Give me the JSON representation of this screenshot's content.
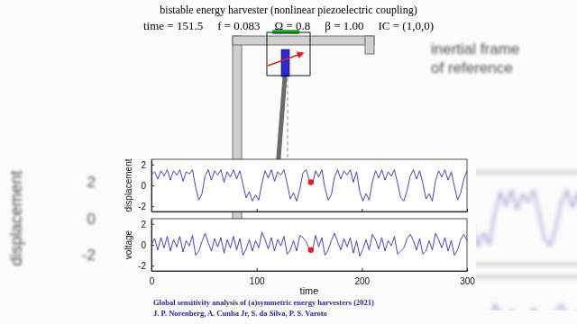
{
  "header": {
    "title": "bistable energy harvester (nonlinear piezoelectric coupling)",
    "params": [
      "time = 151.5",
      "f = 0.083",
      "Ω = 0.8",
      "β = 1.00",
      "IC = (1,0,0)"
    ]
  },
  "diagram": {
    "label": [
      "inertial frame",
      "of reference"
    ]
  },
  "chart_data": [
    {
      "type": "line",
      "y_label": "displacement",
      "x": [
        0,
        3,
        6,
        9,
        12,
        15,
        18,
        21,
        24,
        27,
        30,
        33,
        36,
        39,
        42,
        45,
        48,
        51,
        54,
        57,
        60,
        63,
        66,
        69,
        72,
        75,
        78,
        81,
        84,
        87,
        90,
        93,
        96,
        99,
        102,
        105,
        108,
        111,
        114,
        117,
        120,
        123,
        126,
        129,
        132,
        135,
        138,
        141,
        144,
        147,
        150,
        153,
        156,
        159,
        162,
        165,
        168,
        171,
        174,
        177,
        180,
        183,
        186,
        189,
        192,
        195,
        198,
        201,
        204,
        207,
        210,
        213,
        216,
        219,
        222,
        225,
        228,
        231,
        234,
        237,
        240,
        243,
        246,
        249,
        252,
        255,
        258,
        261,
        264,
        267,
        270,
        273,
        276,
        279,
        282,
        285,
        288,
        291,
        294,
        297,
        300
      ],
      "series": [
        {
          "color": "#3030a0",
          "values": [
            1.0,
            1.3,
            0.6,
            1.4,
            0.9,
            1.5,
            0.5,
            1.4,
            1.0,
            1.5,
            0.4,
            1.3,
            1.1,
            1.5,
            -0.2,
            -1.4,
            -0.8,
            0.9,
            1.5,
            0.5,
            1.4,
            1.0,
            1.5,
            0.3,
            1.3,
            0.8,
            1.5,
            0.6,
            1.4,
            0.1,
            -1.2,
            -0.6,
            -1.5,
            -0.9,
            -1.4,
            0.2,
            1.4,
            0.7,
            1.5,
            0.4,
            1.3,
            1.0,
            1.5,
            0.2,
            -1.3,
            -0.7,
            -1.5,
            -0.4,
            1.2,
            1.5,
            0.5,
            0.1,
            1.4,
            0.8,
            1.5,
            -0.3,
            -1.4,
            -0.9,
            0.8,
            1.5,
            0.6,
            1.4,
            1.0,
            1.5,
            0.3,
            1.3,
            -0.6,
            -1.5,
            -0.8,
            -1.4,
            0.3,
            1.4,
            0.7,
            1.5,
            0.5,
            1.3,
            0.9,
            1.5,
            0.2,
            -1.2,
            -1.5,
            -0.5,
            0.9,
            1.5,
            0.6,
            1.4,
            0.2,
            -1.3,
            -0.8,
            -1.5,
            0.4,
            1.4,
            0.8,
            1.5,
            0.5,
            1.3,
            -0.1,
            -1.4,
            -0.7,
            0.6,
            1.4
          ]
        },
        {
          "type": "scatter",
          "marker": "circle",
          "color": "#e0201c",
          "x": [
            151.5
          ],
          "values": [
            0.3
          ]
        }
      ],
      "xlim": [
        0,
        300
      ],
      "xticks": [
        0,
        100,
        200,
        300
      ],
      "ylim": [
        -2.5,
        2.5
      ],
      "yticks": [
        -2,
        0,
        2
      ],
      "tick_labels": "y"
    },
    {
      "type": "line",
      "x_label": "time",
      "y_label": "voltage",
      "x": [
        0,
        3,
        6,
        9,
        12,
        15,
        18,
        21,
        24,
        27,
        30,
        33,
        36,
        39,
        42,
        45,
        48,
        51,
        54,
        57,
        60,
        63,
        66,
        69,
        72,
        75,
        78,
        81,
        84,
        87,
        90,
        93,
        96,
        99,
        102,
        105,
        108,
        111,
        114,
        117,
        120,
        123,
        126,
        129,
        132,
        135,
        138,
        141,
        144,
        147,
        150,
        153,
        156,
        159,
        162,
        165,
        168,
        171,
        174,
        177,
        180,
        183,
        186,
        189,
        192,
        195,
        198,
        201,
        204,
        207,
        210,
        213,
        216,
        219,
        222,
        225,
        228,
        231,
        234,
        237,
        240,
        243,
        246,
        249,
        252,
        255,
        258,
        261,
        264,
        267,
        270,
        273,
        276,
        279,
        282,
        285,
        288,
        291,
        294,
        297,
        300
      ],
      "series": [
        {
          "color": "#3030a0",
          "values": [
            0.0,
            0.6,
            -0.5,
            0.7,
            -0.3,
            0.8,
            -0.6,
            0.5,
            -0.2,
            0.8,
            -0.7,
            0.4,
            -0.1,
            0.9,
            -1.0,
            -0.6,
            0.3,
            1.1,
            0.2,
            -0.6,
            0.6,
            -0.2,
            0.7,
            -0.8,
            0.5,
            -0.3,
            0.8,
            -0.5,
            0.6,
            -1.0,
            -0.4,
            0.5,
            -0.6,
            0.4,
            -0.3,
            1.2,
            0.5,
            -0.4,
            0.7,
            -0.6,
            0.5,
            -0.1,
            0.8,
            -0.9,
            -0.5,
            0.4,
            -0.6,
            0.9,
            0.7,
            0.3,
            -0.4,
            -0.6,
            0.9,
            -0.2,
            0.7,
            -1.0,
            -0.5,
            0.4,
            1.1,
            0.3,
            -0.5,
            0.6,
            -0.2,
            0.7,
            -0.8,
            0.4,
            -1.1,
            -0.4,
            0.5,
            -0.5,
            1.0,
            0.5,
            -0.4,
            0.7,
            -0.6,
            0.4,
            -0.1,
            0.8,
            -0.9,
            -0.6,
            -0.3,
            0.6,
            1.0,
            0.4,
            -0.5,
            0.6,
            -0.9,
            -0.6,
            0.4,
            -0.5,
            1.1,
            0.5,
            -0.3,
            0.7,
            -0.6,
            0.4,
            -1.0,
            -0.5,
            0.5,
            1.0,
            0.4
          ]
        },
        {
          "type": "scatter",
          "marker": "circle",
          "color": "#e0201c",
          "x": [
            151.5
          ],
          "values": [
            -0.5
          ]
        }
      ],
      "xlim": [
        0,
        300
      ],
      "xticks": [
        0,
        100,
        200,
        300
      ],
      "ylim": [
        -2.5,
        2.5
      ],
      "yticks": [
        -2,
        0,
        2
      ]
    }
  ],
  "footer": {
    "citation": "Global sensitivity analysis of (a)symmetric energy harvesters (2021)",
    "authors": "J. P. Norenberg, A. Cunha Jr, S. da Silva, P. S. Varoto"
  }
}
